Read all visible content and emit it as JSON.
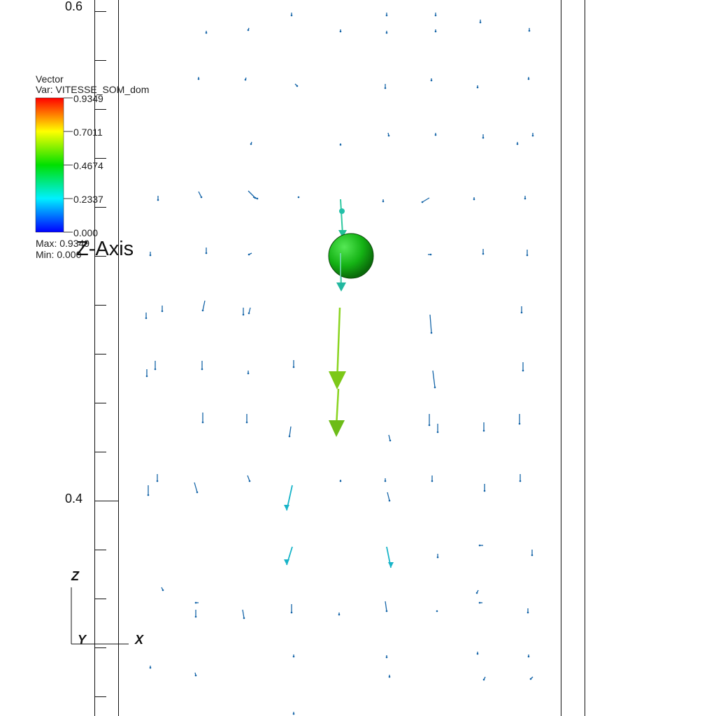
{
  "legend": {
    "title": "Vector",
    "variable": "Var: VITESSE_SOM_dom",
    "ticks": [
      "0.9349",
      "0.7011",
      "0.4674",
      "0.2337",
      "0.000"
    ],
    "max": "Max: 0.9349",
    "min": "Min: 0.000",
    "gradient": [
      "#0000ff",
      "#00c8ff",
      "#00ffc8",
      "#00e000",
      "#c8ff00",
      "#ffff00",
      "#ff8000",
      "#ff0000"
    ]
  },
  "axis": {
    "title": "Z-Axis",
    "top_label": "0.6",
    "bottom_label": "0.4"
  },
  "triad": {
    "z": "Z",
    "x": "X",
    "y": "Y"
  },
  "colors": {
    "small_vector": "#1565a8",
    "medium_vector": "#18b4c8",
    "center_vector": "#7acc10",
    "sphere": "#11aa11",
    "frame": "#111111"
  }
}
